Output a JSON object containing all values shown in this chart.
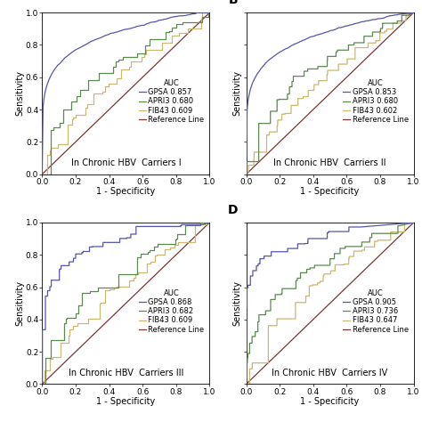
{
  "panels": [
    {
      "label": "",
      "subtitle": "In Chronic HBV  Carriers I",
      "auc_gpsa": 0.857,
      "auc_apri": 0.68,
      "auc_fib": 0.609,
      "show_ylabel": true
    },
    {
      "label": "B",
      "subtitle": "In Chronic HBV  Carriers II",
      "auc_gpsa": 0.853,
      "auc_apri": 0.68,
      "auc_fib": 0.602,
      "show_ylabel": true
    },
    {
      "label": "",
      "subtitle": "In Chronic HBV  Carriers III",
      "auc_gpsa": 0.868,
      "auc_apri": 0.682,
      "auc_fib": 0.609,
      "show_ylabel": true
    },
    {
      "label": "D",
      "subtitle": "In Chronic HBV  Carriers IV",
      "auc_gpsa": 0.905,
      "auc_apri": 0.736,
      "auc_fib": 0.647,
      "show_ylabel": true
    }
  ],
  "color_gpsa": "#5555aa",
  "color_apri": "#5a8a50",
  "color_fib": "#c8b870",
  "color_ref": "#7a3535",
  "bg_color": "#ffffff",
  "axis_bg": "#ffffff",
  "font_size": 7,
  "legend_font_size": 6,
  "subtitle_font_size": 7
}
